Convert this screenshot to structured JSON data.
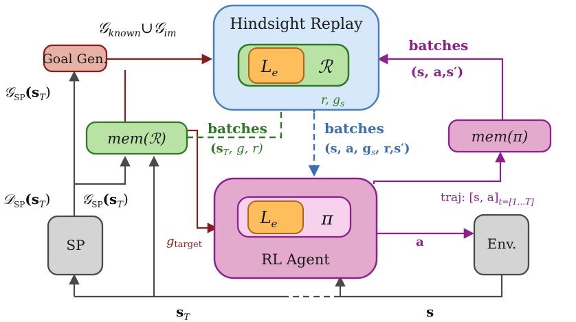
{
  "colors": {
    "gray": "#4a4a4a",
    "red": "#8b1c1c",
    "green": "#2e7a24",
    "blue": "#3a6fb3",
    "purple": "#8e1f8e",
    "hindsight_fill": "#d6e8fa",
    "hindsight_stroke": "#4a7fbd",
    "green_fill": "#b9e2a5",
    "orange_fill": "#ffbe5c",
    "pink_fill": "#e4aacd",
    "pink_inner": "#f6d2ec",
    "goal_fill": "#e7b1a6",
    "gray_fill": "#d4d4d4"
  },
  "nodes": {
    "hindsight_title": "Hindsight Replay",
    "hindsight_le": "L",
    "hindsight_le_sub": "e",
    "hindsight_r": "ℛ",
    "goal_gen": "Goal Gen.",
    "mem_r_prefix": "mem(",
    "mem_r_sym": "ℛ",
    "mem_r_suffix": ")",
    "mem_pi": "mem(π)",
    "rl_title": "RL Agent",
    "rl_le": "L",
    "rl_le_sub": "e",
    "rl_pi": "π",
    "sp": "SP",
    "env": "Env."
  },
  "labels": {
    "goal_union": {
      "g1": "𝒢",
      "s1": "known",
      "u": "∪",
      "g2": "𝒢",
      "s2": "im"
    },
    "gsp_left": {
      "g": "𝒢",
      "sub": "SP",
      "arg": "(s",
      "argsub": "T",
      "close": ")"
    },
    "dsp_left": {
      "g": "𝒟",
      "sub": "SP",
      "arg": "(s",
      "argsub": "T",
      "close": ")"
    },
    "gsp_mid": {
      "g": "𝒢",
      "sub": "SP",
      "arg": "(s",
      "argsub": "T",
      "close": ")"
    },
    "batches_purple": "batches",
    "tuple_purple": "(s, a,s′)",
    "r_gs": {
      "r": "r, g",
      "sub": "s"
    },
    "batches_blue": "batches",
    "tuple_blue": "(s, a, g",
    "tuple_blue_sub": "s",
    "tuple_blue_end": ", r,s′)",
    "batches_green": "batches",
    "tuple_green": "(s",
    "tuple_green_sub": "T",
    "tuple_green_end": ", g, r)",
    "traj": "traj: [s, a]",
    "traj_sub": "t=[1,..T]",
    "g_target": "g",
    "g_target_sub": "target",
    "a_label": "a",
    "s_T": "s",
    "s_T_sub": "T",
    "s_label": "s"
  }
}
